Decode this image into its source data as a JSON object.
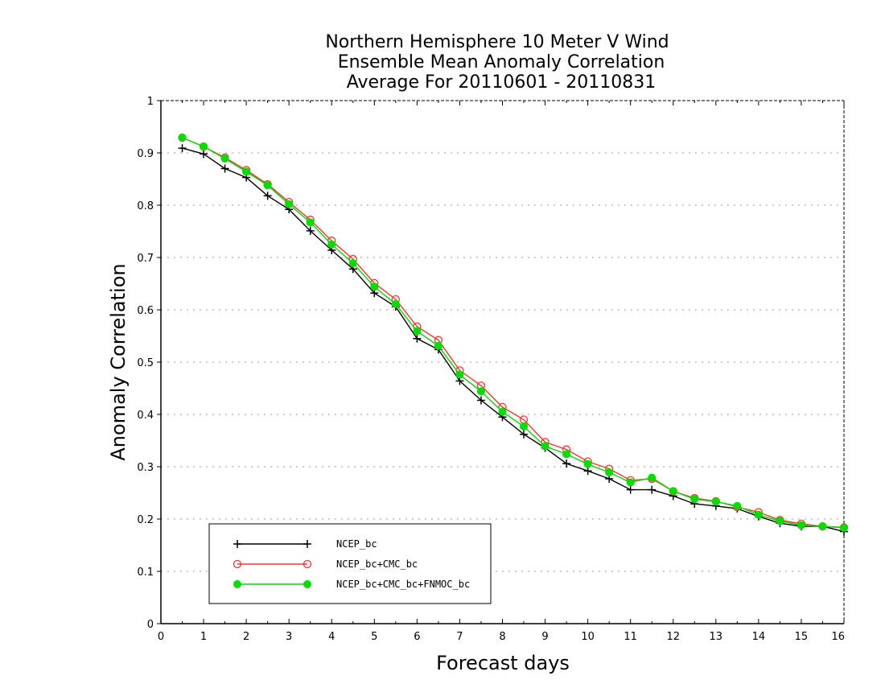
{
  "chart_data": {
    "type": "line",
    "title_lines": [
      "Northern Hemisphere 10 Meter V Wind",
      "Ensemble Mean Anomaly Correlation",
      "Average For 20110601 - 20110831"
    ],
    "xlabel": "Forecast days",
    "ylabel": "Anomaly Correlation",
    "xlim": [
      0,
      16
    ],
    "ylim": [
      0,
      1
    ],
    "x_ticks": [
      "0",
      "1",
      "2",
      "3",
      "4",
      "5",
      "6",
      "7",
      "8",
      "9",
      "10",
      "11",
      "12",
      "13",
      "14",
      "15",
      "16"
    ],
    "y_ticks": [
      "0",
      "0.1",
      "0.2",
      "0.3",
      "0.4",
      "0.5",
      "0.6",
      "0.7",
      "0.8",
      "0.9",
      "1"
    ],
    "grid": true,
    "legend_position": "bottom-left",
    "x": [
      0.5,
      1,
      1.5,
      2,
      2.5,
      3,
      3.5,
      4,
      4.5,
      5,
      5.5,
      6,
      6.5,
      7,
      7.5,
      8,
      8.5,
      9,
      9.5,
      10,
      10.5,
      11,
      11.5,
      12,
      12.5,
      13,
      13.5,
      14,
      14.5,
      15,
      15.5,
      16
    ],
    "series": [
      {
        "name": "NCEP_bc",
        "color": "#000000",
        "marker": "plus",
        "values": [
          0.909,
          0.898,
          0.87,
          0.853,
          0.818,
          0.792,
          0.751,
          0.714,
          0.678,
          0.632,
          0.606,
          0.545,
          0.524,
          0.464,
          0.427,
          0.395,
          0.362,
          0.336,
          0.306,
          0.292,
          0.277,
          0.256,
          0.256,
          0.244,
          0.229,
          0.225,
          0.22,
          0.205,
          0.192,
          0.186,
          0.186,
          0.176
        ]
      },
      {
        "name": "NCEP_bc+CMC_bc",
        "color": "#ff3333",
        "marker": "open-circle",
        "values": [
          0.929,
          0.912,
          0.891,
          0.867,
          0.84,
          0.806,
          0.772,
          0.732,
          0.697,
          0.651,
          0.62,
          0.568,
          0.542,
          0.484,
          0.455,
          0.414,
          0.39,
          0.347,
          0.333,
          0.31,
          0.296,
          0.274,
          0.277,
          0.253,
          0.24,
          0.234,
          0.223,
          0.213,
          0.198,
          0.191,
          0.186,
          0.184
        ]
      },
      {
        "name": "NCEP_bc+CMC_bc+FNMOC_bc",
        "color": "#00dd00",
        "marker": "filled-circle",
        "values": [
          0.929,
          0.912,
          0.889,
          0.864,
          0.838,
          0.802,
          0.767,
          0.725,
          0.689,
          0.644,
          0.611,
          0.559,
          0.531,
          0.476,
          0.444,
          0.405,
          0.377,
          0.339,
          0.324,
          0.305,
          0.289,
          0.27,
          0.279,
          0.253,
          0.238,
          0.233,
          0.225,
          0.208,
          0.196,
          0.188,
          0.186,
          0.183
        ]
      }
    ]
  }
}
